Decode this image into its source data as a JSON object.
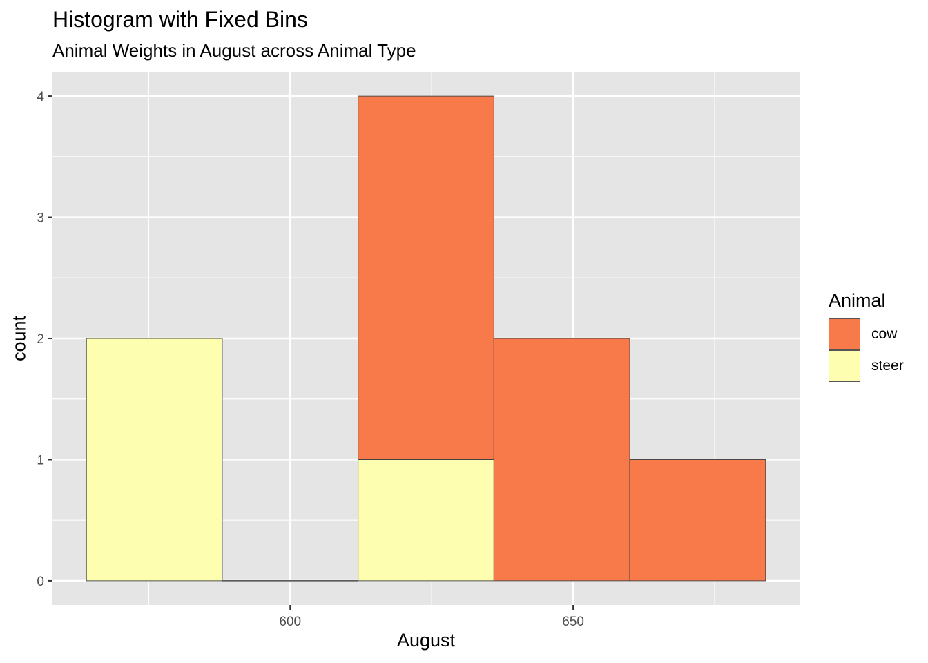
{
  "chart_data": {
    "type": "bar",
    "title": "Histogram with Fixed Bins",
    "subtitle": "Animal Weights in August across Animal Type",
    "xlabel": "August",
    "ylabel": "count",
    "stacked": true,
    "bins": [
      {
        "x0": 564,
        "x1": 588
      },
      {
        "x0": 588,
        "x1": 612
      },
      {
        "x0": 612,
        "x1": 636
      },
      {
        "x0": 636,
        "x1": 660
      },
      {
        "x0": 660,
        "x1": 684
      }
    ],
    "series": [
      {
        "name": "cow",
        "color": "#F87A4A",
        "values": [
          0,
          0,
          3,
          2,
          1
        ]
      },
      {
        "name": "steer",
        "color": "#FEFEB0",
        "values": [
          2,
          0,
          1,
          0,
          0
        ]
      }
    ],
    "xlim": [
      558,
      690
    ],
    "ylim": [
      -0.2,
      4.2
    ],
    "x_ticks": [
      600,
      650
    ],
    "y_ticks": [
      0,
      1,
      2,
      3,
      4
    ],
    "legend": {
      "title": "Animal",
      "position": "right"
    },
    "grid": true,
    "panel_background": "#E5E5E5",
    "grid_color": "#FFFFFF",
    "outline_color": "#444444"
  }
}
